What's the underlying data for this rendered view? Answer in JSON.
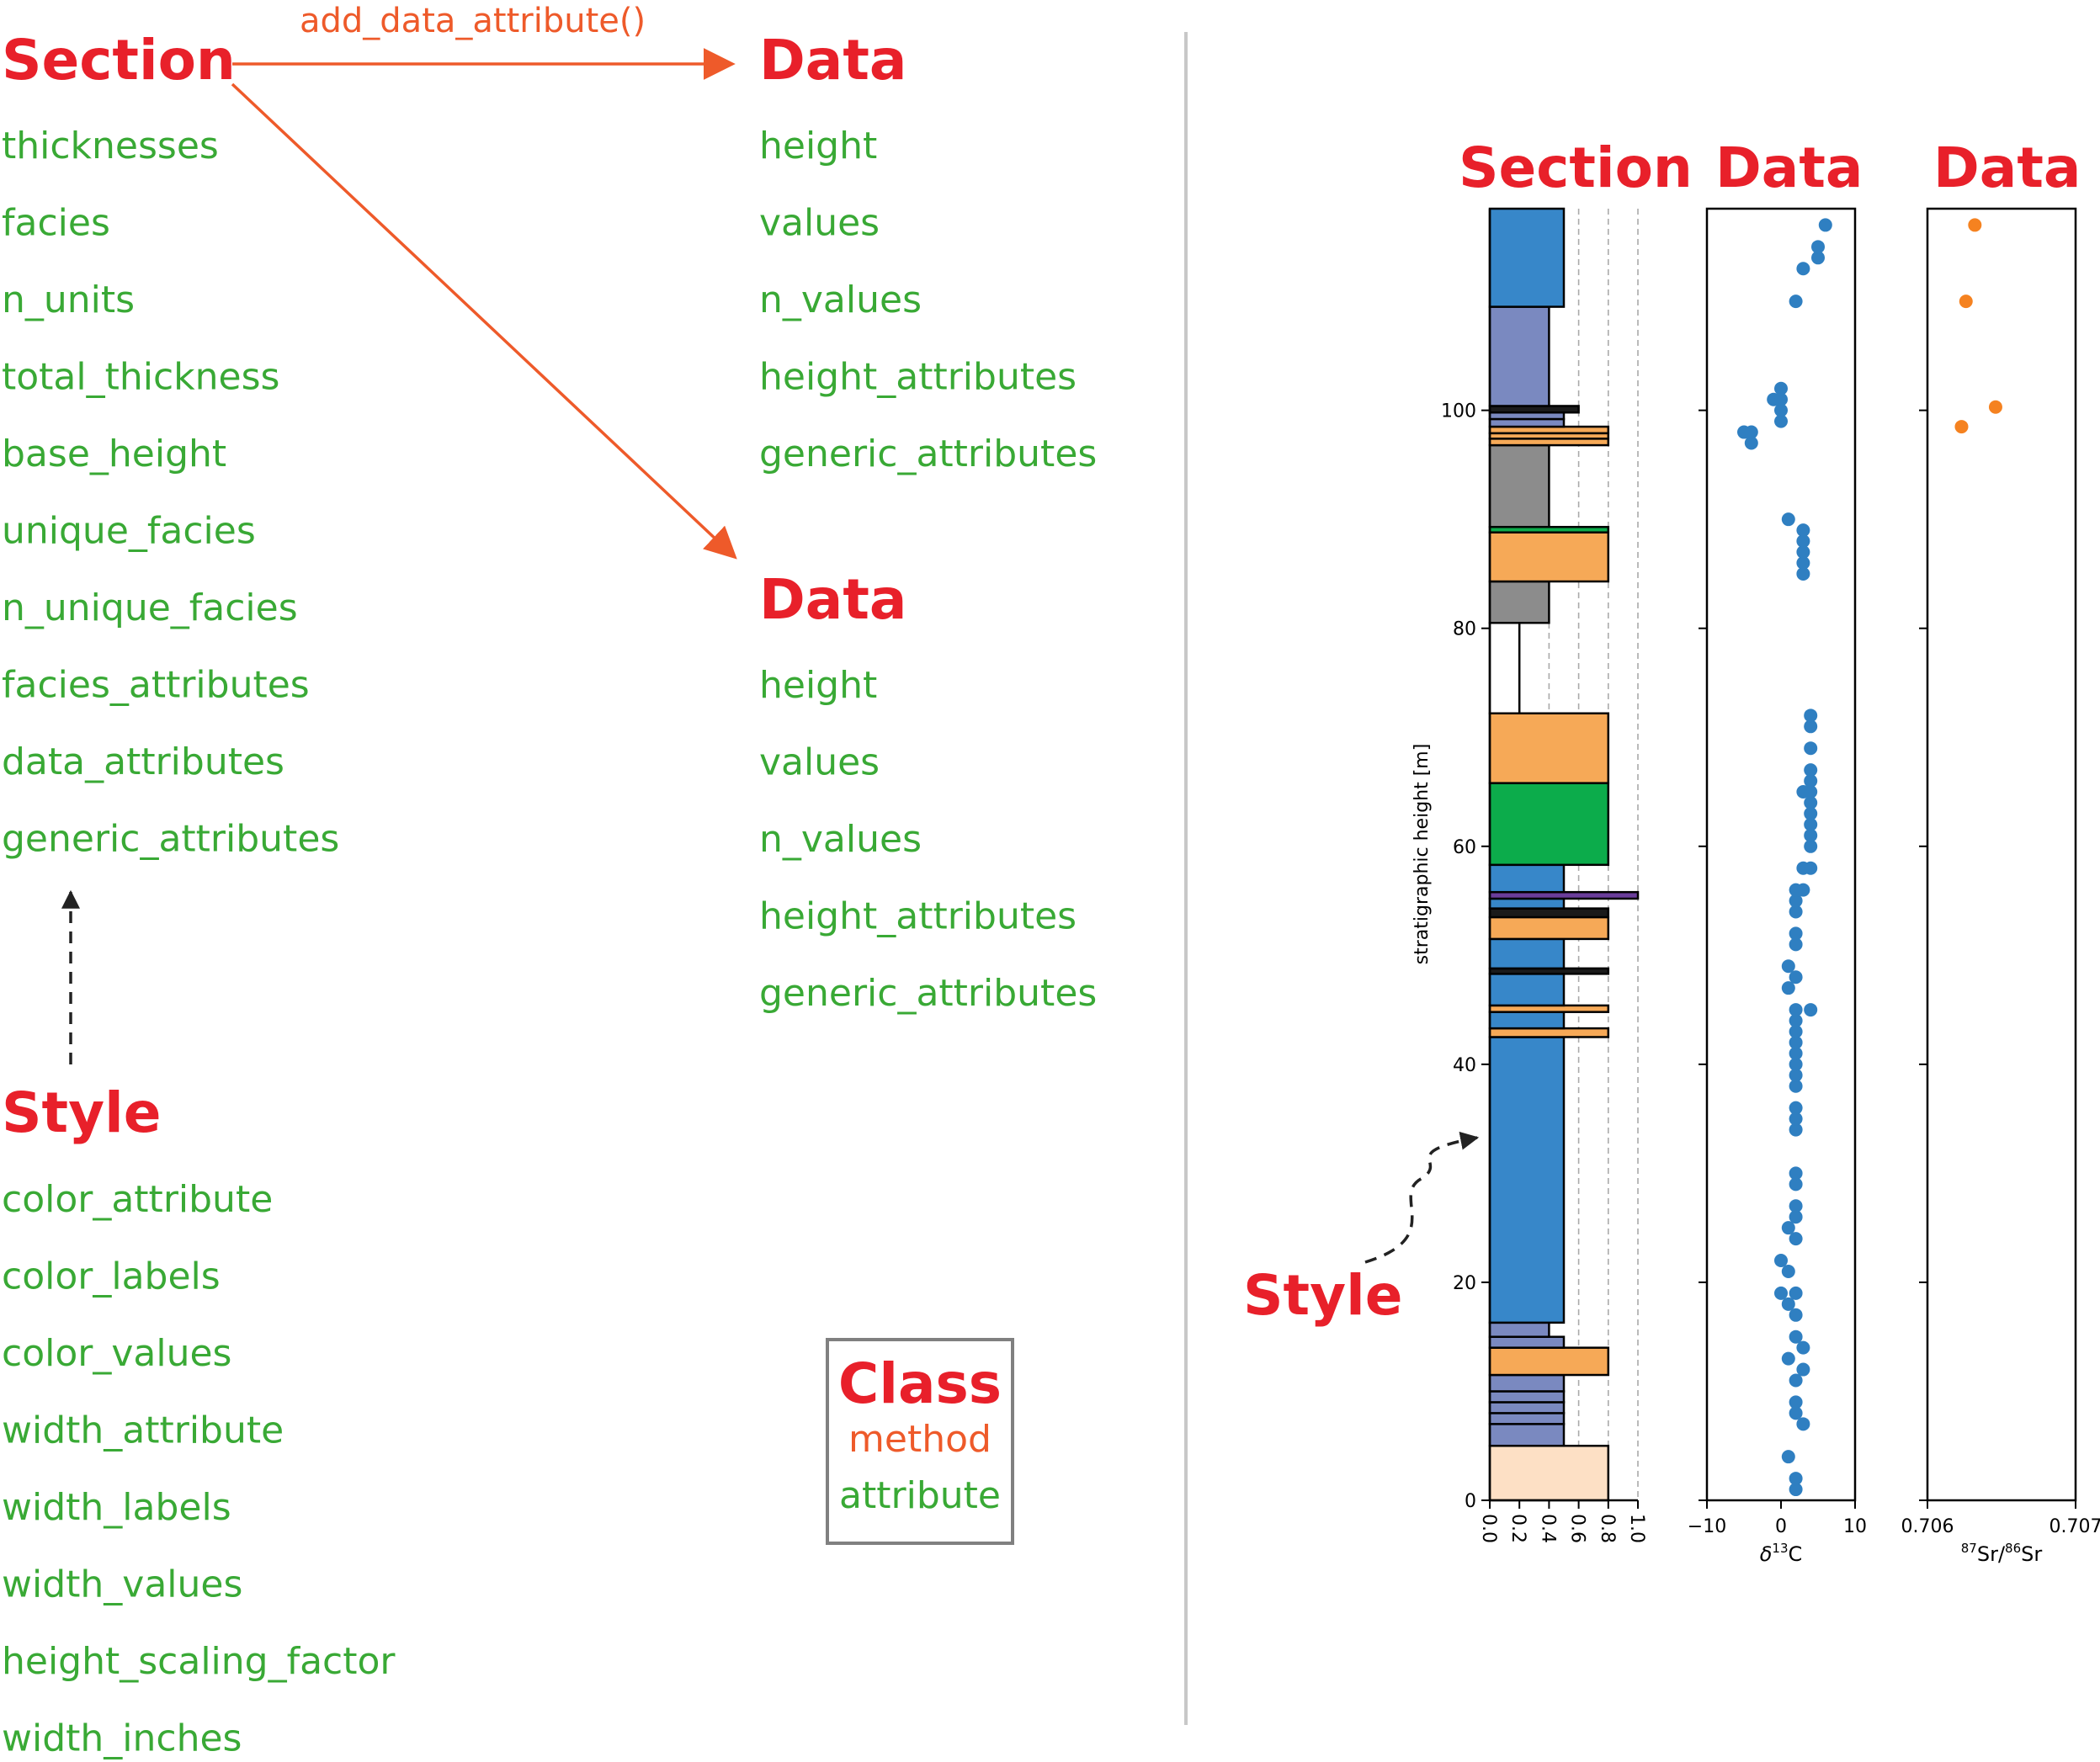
{
  "colors": {
    "class_red": "#e8202a",
    "method_orange": "#ee5a2a",
    "attribute_green": "#39a935",
    "divider": "#c8c8c8",
    "legend_border": "#808080",
    "point_blue": "#2f7fc1",
    "point_orange": "#f58220"
  },
  "left": {
    "section": {
      "title": "Section",
      "attributes": [
        "thicknesses",
        "facies",
        "n_units",
        "total_thickness",
        "base_height",
        "unique_facies",
        "n_unique_facies",
        "facies_attributes",
        "data_attributes",
        "generic_attributes"
      ]
    },
    "method_label": "add_data_attribute()",
    "data_top": {
      "title": "Data",
      "attributes": [
        "height",
        "values",
        "n_values",
        "height_attributes",
        "generic_attributes"
      ]
    },
    "data_bottom": {
      "title": "Data",
      "attributes": [
        "height",
        "values",
        "n_values",
        "height_attributes",
        "generic_attributes"
      ]
    },
    "style": {
      "title": "Style",
      "attributes": [
        "color_attribute",
        "color_labels",
        "color_values",
        "width_attribute",
        "width_labels",
        "width_values",
        "height_scaling_factor",
        "width_inches"
      ]
    },
    "legend": {
      "class": "Class",
      "method": "method",
      "attribute": "attribute"
    }
  },
  "right": {
    "section_title": "Section",
    "data_title_1": "Data",
    "data_title_2": "Data",
    "style_label": "Style"
  },
  "chart_data": [
    {
      "type": "bar",
      "name": "stratigraphic-column",
      "ylabel": "stratigraphic height [m]",
      "ylim": [
        0,
        118.5
      ],
      "xlim": [
        0,
        1.0
      ],
      "yticks": [
        0,
        20,
        40,
        60,
        80,
        100
      ],
      "xticks": [
        "0.0",
        "0.2",
        "0.4",
        "0.6",
        "0.8",
        "1.0"
      ],
      "grid_x_dashed": [
        0.4,
        0.6,
        0.8,
        1.0
      ],
      "units": [
        {
          "base": 0,
          "top": 5,
          "width": 0.8,
          "color": "#fde0c5"
        },
        {
          "base": 5,
          "top": 7,
          "width": 0.5,
          "color": "#7a89c0"
        },
        {
          "base": 7,
          "top": 8,
          "width": 0.5,
          "color": "#7a89c0"
        },
        {
          "base": 8,
          "top": 9,
          "width": 0.5,
          "color": "#7a89c0"
        },
        {
          "base": 9,
          "top": 10,
          "width": 0.5,
          "color": "#7a89c0"
        },
        {
          "base": 10,
          "top": 11.5,
          "width": 0.5,
          "color": "#7a89c0"
        },
        {
          "base": 11.5,
          "top": 14,
          "width": 0.8,
          "color": "#f6a957"
        },
        {
          "base": 14,
          "top": 15,
          "width": 0.5,
          "color": "#7a89c0"
        },
        {
          "base": 15,
          "top": 16.3,
          "width": 0.4,
          "color": "#7a89c0"
        },
        {
          "base": 16.3,
          "top": 42.5,
          "width": 0.5,
          "color": "#3787c9"
        },
        {
          "base": 42.5,
          "top": 43.3,
          "width": 0.8,
          "color": "#f6a957"
        },
        {
          "base": 43.3,
          "top": 44.8,
          "width": 0.5,
          "color": "#3787c9"
        },
        {
          "base": 44.8,
          "top": 45.4,
          "width": 0.8,
          "color": "#f6a957"
        },
        {
          "base": 45.4,
          "top": 48.3,
          "width": 0.5,
          "color": "#3787c9"
        },
        {
          "base": 48.3,
          "top": 48.8,
          "width": 0.8,
          "color": "#1a1a1a"
        },
        {
          "base": 48.8,
          "top": 51.5,
          "width": 0.5,
          "color": "#3787c9"
        },
        {
          "base": 51.5,
          "top": 53.5,
          "width": 0.8,
          "color": "#f6a957"
        },
        {
          "base": 53.5,
          "top": 54.3,
          "width": 0.8,
          "color": "#1a1a1a"
        },
        {
          "base": 54.3,
          "top": 55.2,
          "width": 0.5,
          "color": "#3787c9"
        },
        {
          "base": 55.2,
          "top": 55.8,
          "width": 1.0,
          "color": "#6a3d9a"
        },
        {
          "base": 55.8,
          "top": 58.3,
          "width": 0.5,
          "color": "#3787c9"
        },
        {
          "base": 58.3,
          "top": 65.8,
          "width": 0.8,
          "color": "#0cac4b"
        },
        {
          "base": 65.8,
          "top": 72.2,
          "width": 0.8,
          "color": "#f6a957"
        },
        {
          "base": 72.2,
          "top": 80.5,
          "width": 0.2,
          "color": "#ffffff"
        },
        {
          "base": 80.5,
          "top": 84.3,
          "width": 0.4,
          "color": "#8c8c8c"
        },
        {
          "base": 84.3,
          "top": 88.8,
          "width": 0.8,
          "color": "#f6a957"
        },
        {
          "base": 88.8,
          "top": 89.3,
          "width": 0.8,
          "color": "#0cac4b"
        },
        {
          "base": 89.3,
          "top": 96.8,
          "width": 0.4,
          "color": "#8c8c8c"
        },
        {
          "base": 96.8,
          "top": 97.4,
          "width": 0.8,
          "color": "#f6a957"
        },
        {
          "base": 97.4,
          "top": 97.9,
          "width": 0.8,
          "color": "#f6a957"
        },
        {
          "base": 97.9,
          "top": 98.5,
          "width": 0.8,
          "color": "#f6a957"
        },
        {
          "base": 98.5,
          "top": 99.2,
          "width": 0.5,
          "color": "#7a89c0"
        },
        {
          "base": 99.2,
          "top": 99.8,
          "width": 0.5,
          "color": "#7a89c0"
        },
        {
          "base": 99.8,
          "top": 100.4,
          "width": 0.6,
          "color": "#1a1a1a"
        },
        {
          "base": 100.4,
          "top": 109.5,
          "width": 0.4,
          "color": "#7a89c0"
        },
        {
          "base": 109.5,
          "top": 118.5,
          "width": 0.5,
          "color": "#3787c9"
        }
      ]
    },
    {
      "type": "scatter",
      "name": "d13C",
      "xlabel_main": "δ",
      "xlabel_sup": "13",
      "xlabel_tail": "C",
      "xlim": [
        -10,
        10
      ],
      "ylim": [
        0,
        118.5
      ],
      "xticks": [
        -10,
        0,
        10
      ],
      "xtick_labels": [
        "−10",
        "0",
        "10"
      ],
      "color": "#2f7fc1",
      "points": [
        [
          2,
          1
        ],
        [
          2,
          2
        ],
        [
          1,
          4
        ],
        [
          3,
          7
        ],
        [
          2,
          8
        ],
        [
          2,
          9
        ],
        [
          2,
          11
        ],
        [
          3,
          12
        ],
        [
          1,
          13
        ],
        [
          3,
          14
        ],
        [
          2,
          15
        ],
        [
          2,
          17
        ],
        [
          1,
          18
        ],
        [
          2,
          19
        ],
        [
          0,
          19
        ],
        [
          1,
          21
        ],
        [
          0,
          22
        ],
        [
          2,
          24
        ],
        [
          1,
          25
        ],
        [
          2,
          26
        ],
        [
          2,
          27
        ],
        [
          2,
          29
        ],
        [
          2,
          30
        ],
        [
          2,
          34
        ],
        [
          2,
          35
        ],
        [
          2,
          36
        ],
        [
          2,
          38
        ],
        [
          2,
          39
        ],
        [
          2,
          40
        ],
        [
          2,
          41
        ],
        [
          2,
          42
        ],
        [
          2,
          43
        ],
        [
          2,
          44
        ],
        [
          4,
          45
        ],
        [
          2,
          45
        ],
        [
          1,
          47
        ],
        [
          2,
          48
        ],
        [
          1,
          49
        ],
        [
          2,
          51
        ],
        [
          2,
          52
        ],
        [
          2,
          54
        ],
        [
          2,
          55
        ],
        [
          3,
          56
        ],
        [
          2,
          56
        ],
        [
          3,
          58
        ],
        [
          4,
          58
        ],
        [
          4,
          60
        ],
        [
          4,
          61
        ],
        [
          4,
          62
        ],
        [
          4,
          63
        ],
        [
          4,
          64
        ],
        [
          3,
          65
        ],
        [
          4,
          65
        ],
        [
          4,
          66
        ],
        [
          4,
          67
        ],
        [
          4,
          69
        ],
        [
          4,
          71
        ],
        [
          4,
          72
        ],
        [
          3,
          85
        ],
        [
          3,
          86
        ],
        [
          3,
          87
        ],
        [
          3,
          88
        ],
        [
          3,
          89
        ],
        [
          1,
          90
        ],
        [
          -4,
          97
        ],
        [
          -5,
          98
        ],
        [
          -4,
          98
        ],
        [
          0,
          99
        ],
        [
          0,
          100
        ],
        [
          -1,
          101
        ],
        [
          0,
          101
        ],
        [
          0,
          102
        ],
        [
          2,
          110
        ],
        [
          3,
          113
        ],
        [
          5,
          114
        ],
        [
          5,
          115
        ],
        [
          6,
          117
        ]
      ]
    },
    {
      "type": "scatter",
      "name": "87Sr/86Sr",
      "xlabel_sup1": "87",
      "xlabel_mid": "Sr/",
      "xlabel_sup2": "86",
      "xlabel_tail": "Sr",
      "xlim": [
        0.706,
        0.707
      ],
      "ylim": [
        0,
        118.5
      ],
      "xticks": [
        0.706,
        0.707
      ],
      "xtick_labels": [
        "0.706",
        "0.707"
      ],
      "color": "#f58220",
      "points": [
        [
          0.70623,
          98.5
        ],
        [
          0.70646,
          100.3
        ],
        [
          0.70626,
          110
        ],
        [
          0.70632,
          117
        ]
      ]
    }
  ]
}
